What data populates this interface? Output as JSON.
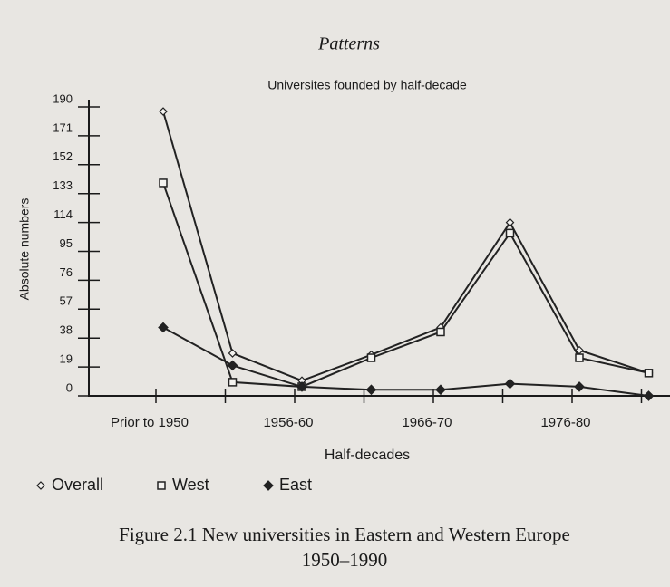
{
  "page_header": "Patterns",
  "chart_data": {
    "type": "line",
    "title": "Universites founded by half-decade",
    "x_label": "Half-decades",
    "y_label": "Absolute numbers",
    "categories": [
      "Prior to 1950",
      null,
      "1956-60",
      null,
      "1966-70",
      null,
      "1976-80",
      null
    ],
    "series": [
      {
        "name": "Overall",
        "color": "#222222",
        "marker": "diamond-open",
        "values": [
          187,
          28,
          10,
          27,
          45,
          114,
          30,
          15
        ]
      },
      {
        "name": "West",
        "color": "#222222",
        "marker": "square-open",
        "values": [
          140,
          9,
          6,
          25,
          42,
          107,
          25,
          15
        ]
      },
      {
        "name": "East",
        "color": "#222222",
        "marker": "diamond-filled",
        "values": [
          45,
          20,
          6,
          4,
          4,
          8,
          6,
          0
        ]
      }
    ],
    "ylim": [
      0,
      190
    ],
    "yticks": [
      0,
      19,
      38,
      57,
      76,
      95,
      114,
      133,
      152,
      171,
      190
    ],
    "legend": "bottom-left"
  },
  "caption": {
    "line1": "Figure 2.1 New universities in Eastern and Western Europe",
    "line2": "1950–1990"
  }
}
